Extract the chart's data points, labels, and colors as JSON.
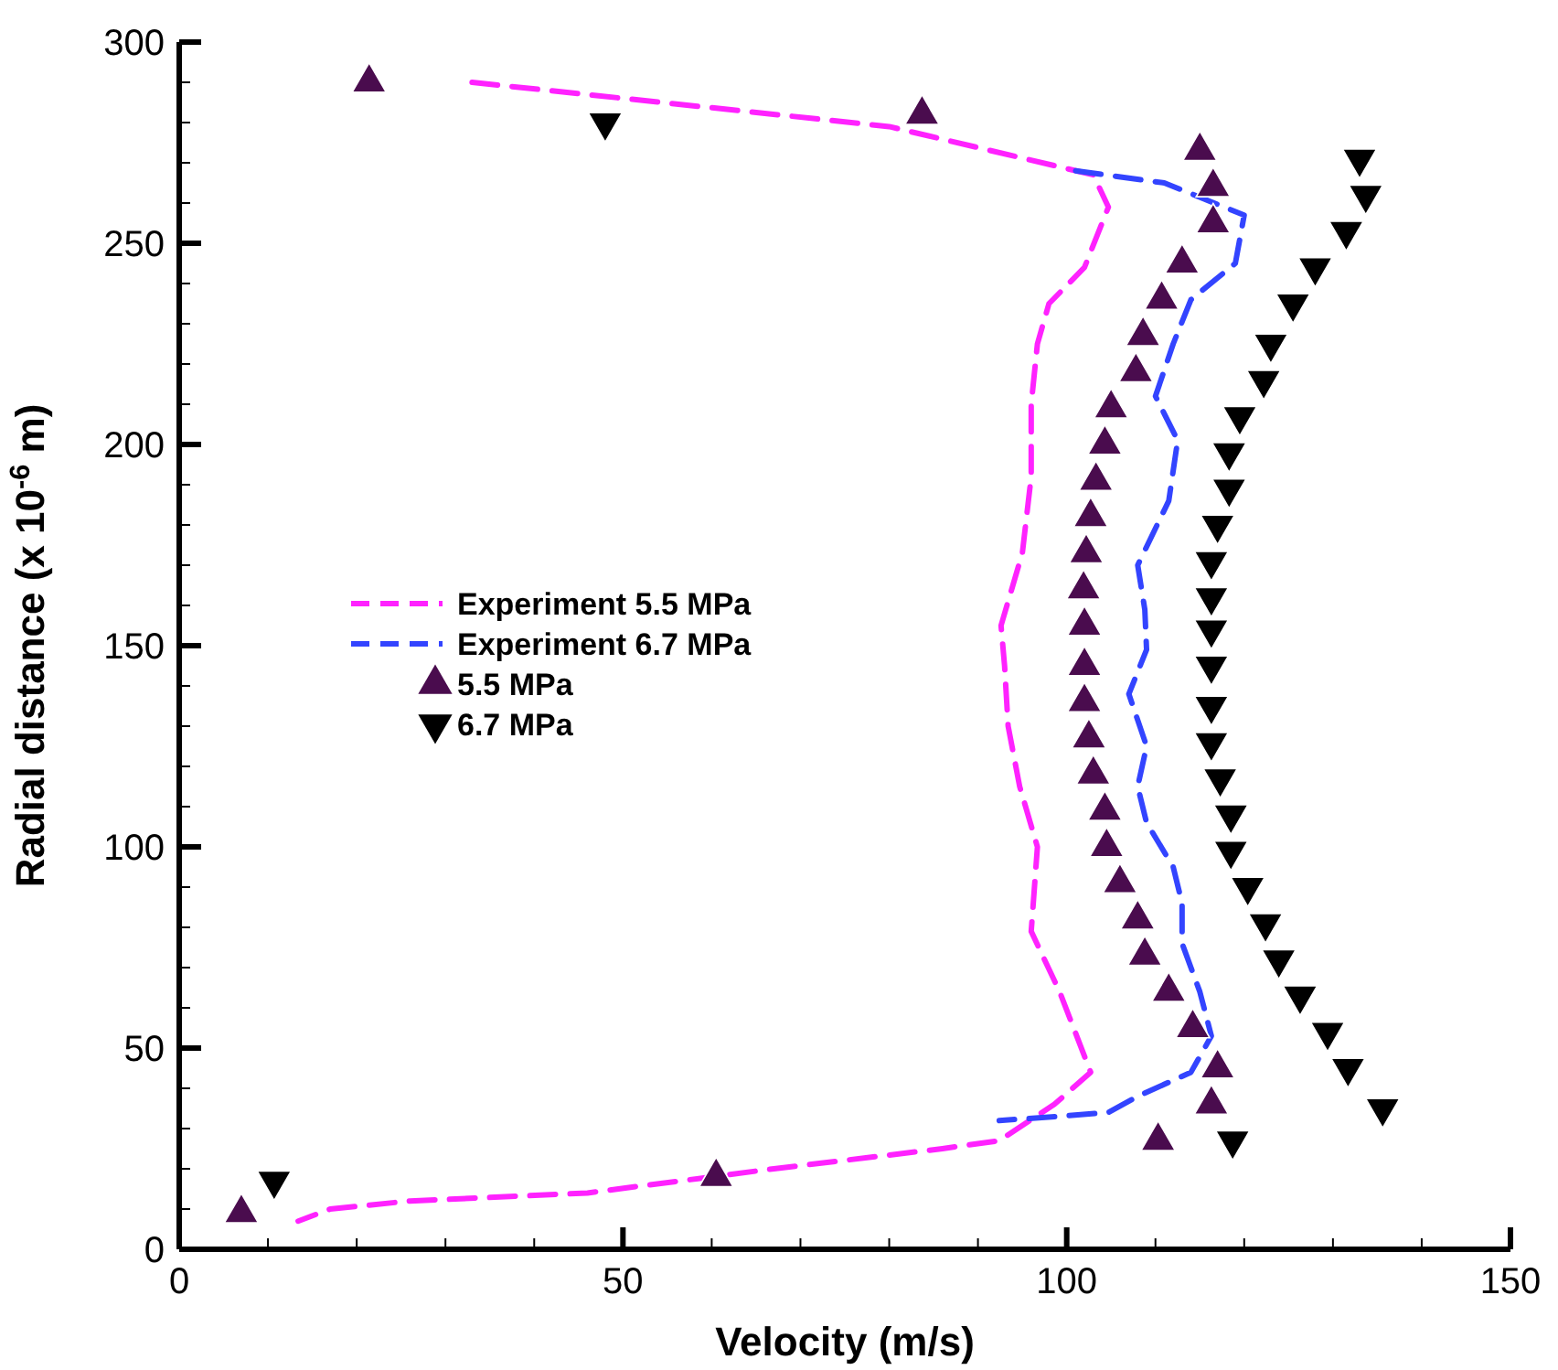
{
  "chart_data": {
    "type": "line",
    "xlabel": "Velocity (m/s)",
    "ylabel": "Radial distance (x 10$^{-6}$ m)",
    "xlim": [
      0,
      150
    ],
    "ylim": [
      0,
      300
    ],
    "xticks": [
      0,
      {
        "value": 10,
        "label": null
      },
      {
        "value": 20,
        "label": null
      },
      {
        "value": 30,
        "label": null
      },
      {
        "value": 40,
        "label": null
      },
      50,
      {
        "value": 60,
        "label": null
      },
      {
        "value": 70,
        "label": null
      },
      {
        "value": 80,
        "label": null
      },
      {
        "value": 90,
        "label": null
      },
      100,
      {
        "value": 110,
        "label": null
      },
      {
        "value": 120,
        "label": null
      },
      {
        "value": 130,
        "label": null
      },
      {
        "value": 140,
        "label": null
      },
      150
    ],
    "yticks": [
      0,
      {
        "value": 10,
        "label": null
      },
      {
        "value": 20,
        "label": null
      },
      {
        "value": 30,
        "label": null
      },
      {
        "value": 40,
        "label": null
      },
      50,
      {
        "value": 60,
        "label": null
      },
      {
        "value": 70,
        "label": null
      },
      {
        "value": 80,
        "label": null
      },
      {
        "value": 90,
        "label": null
      },
      100,
      {
        "value": 110,
        "label": null
      },
      {
        "value": 120,
        "label": null
      },
      {
        "value": 130,
        "label": null
      },
      {
        "value": 140,
        "label": null
      },
      150,
      {
        "value": 160,
        "label": null
      },
      {
        "value": 170,
        "label": null
      },
      {
        "value": 180,
        "label": null
      },
      {
        "value": 190,
        "label": null
      },
      200,
      {
        "value": 210,
        "label": null
      },
      {
        "value": 220,
        "label": null
      },
      {
        "value": 230,
        "label": null
      },
      {
        "value": 240,
        "label": null
      },
      250,
      {
        "value": 260,
        "label": null
      },
      {
        "value": 270,
        "label": null
      },
      {
        "value": 280,
        "label": null
      },
      {
        "value": 290,
        "label": null
      },
      300
    ],
    "grid": false,
    "legend": "left",
    "series": [
      {
        "name": "Experiment 5.5 MPa",
        "line_style": "dashed",
        "marker": "none",
        "color": "#ff22ff",
        "x": [
          33,
          80,
          103,
          104.7,
          102,
          98,
          96.7,
          96,
          96,
          95,
          92.6,
          93,
          93.4,
          94.7,
          96.7,
          96,
          99.2,
          102.7,
          98.6,
          92.4,
          86,
          67,
          46,
          26,
          17,
          13.4
        ],
        "values": [
          290,
          279,
          267,
          259,
          244,
          235,
          225,
          210,
          192,
          173,
          155,
          145,
          130,
          115,
          100,
          79,
          64,
          44,
          36,
          27,
          25,
          20,
          14,
          12,
          10,
          7
        ]
      },
      {
        "name": "Experiment  6.7 MPa",
        "line_style": "dashed",
        "marker": "none",
        "color": "#3344ff",
        "x": [
          101,
          111,
          120,
          119,
          114,
          112,
          110,
          112.5,
          111.5,
          108,
          108.8,
          109,
          107,
          109,
          108,
          109,
          112,
          113,
          113,
          115,
          116.3,
          114,
          108,
          104.7,
          99,
          92.4
        ],
        "values": [
          268,
          265,
          257,
          245,
          236,
          225,
          212,
          201,
          186,
          170,
          159,
          149,
          138,
          125,
          115,
          106,
          95,
          86,
          76,
          64,
          53,
          44,
          38,
          34,
          33,
          32
        ]
      },
      {
        "name": "5.5 MPa",
        "type": "scatter",
        "marker": "triangle",
        "color": "#4a0c4e",
        "x": [
          21.4,
          83.7,
          115,
          116.5,
          116.5,
          113,
          110.7,
          108.6,
          107.8,
          105,
          104.3,
          103.3,
          102.7,
          102.2,
          101.9,
          102,
          102,
          102,
          102.5,
          103,
          104.3,
          104.5,
          106,
          108,
          108.8,
          111.5,
          114.2,
          117,
          116.3,
          110.3,
          60.5,
          7
        ],
        "values": [
          290,
          282,
          273,
          264,
          255,
          245,
          236,
          227,
          218,
          209,
          200,
          191,
          182,
          173,
          164,
          155,
          145,
          136,
          127,
          118,
          109,
          100,
          91,
          82,
          73,
          64,
          55,
          45,
          36,
          27,
          18,
          9
        ]
      },
      {
        "name": "6.7 MPa",
        "type": "scatter",
        "marker": "triangle-down",
        "color": "#000000",
        "x": [
          48,
          133,
          133.7,
          131.5,
          128,
          125.5,
          123,
          122.2,
          119.5,
          118.3,
          118.3,
          117,
          116.3,
          116.3,
          116.3,
          116.3,
          116.3,
          116.3,
          117.3,
          118.5,
          118.5,
          120.4,
          122.4,
          123.9,
          126.3,
          129.4,
          131.7,
          135.6,
          118.7,
          10.7
        ],
        "values": [
          280,
          271,
          262,
          253,
          244,
          235,
          225,
          216,
          207,
          198,
          189,
          180,
          171,
          162,
          154,
          145,
          135,
          126,
          117,
          108,
          99,
          90,
          81,
          72,
          63,
          54,
          45,
          35,
          27,
          17
        ]
      }
    ]
  }
}
